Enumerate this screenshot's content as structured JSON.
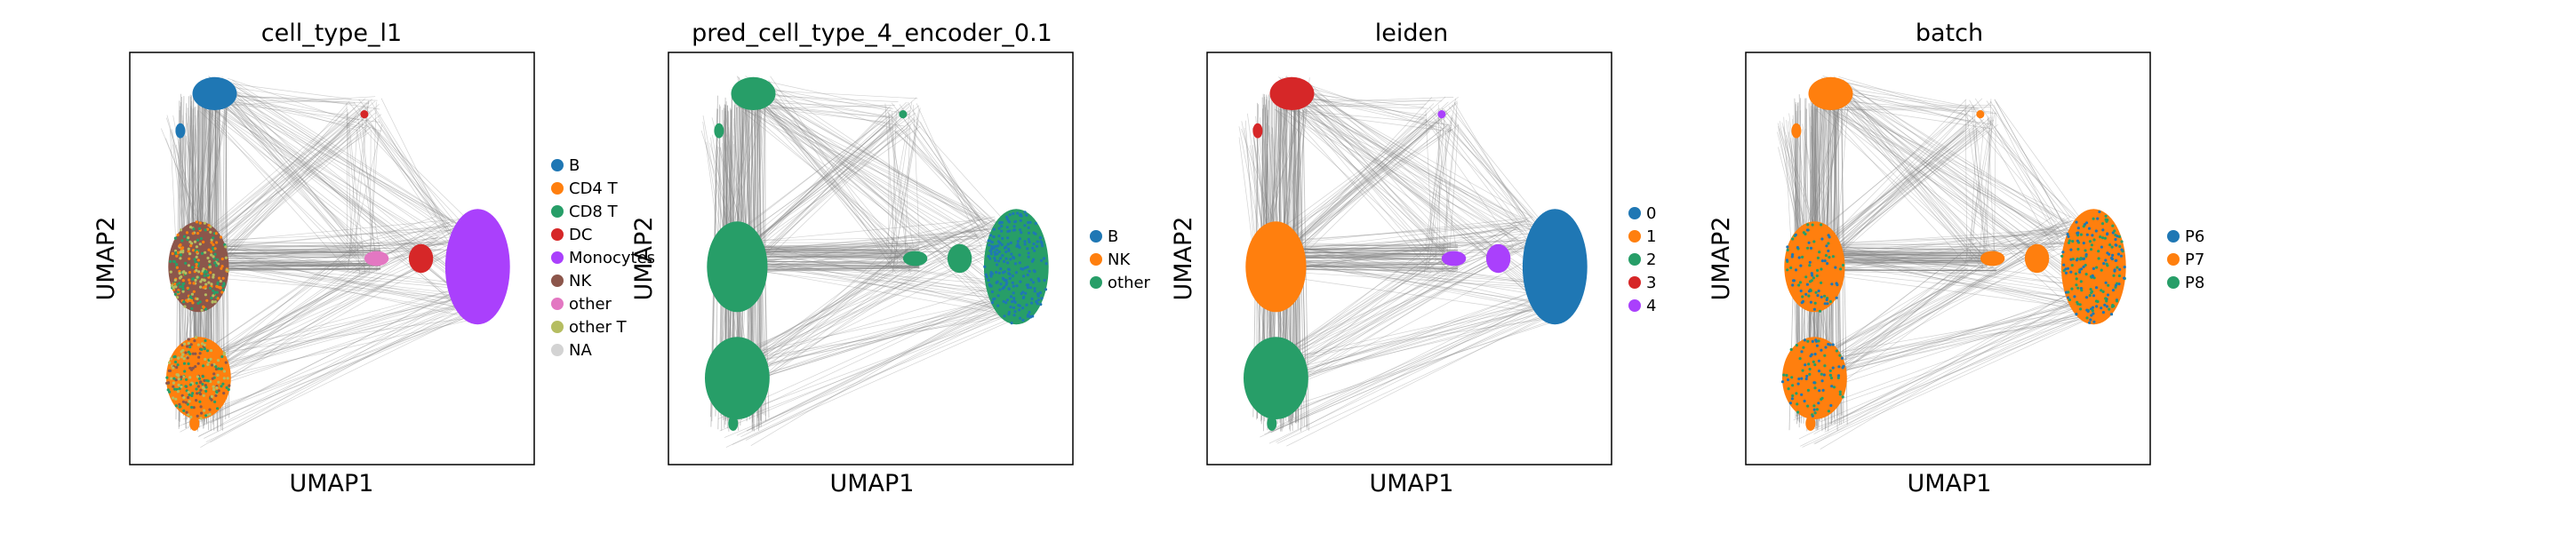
{
  "figure": {
    "xlabel": "UMAP1",
    "ylabel": "UMAP2"
  },
  "chart_data": [
    {
      "type": "scatter",
      "title": "cell_type_l1",
      "xlabel": "UMAP1",
      "ylabel": "UMAP2",
      "grid": false,
      "legend_placement": "right",
      "legend": [
        {
          "label": "B",
          "color": "#1f77b4"
        },
        {
          "label": "CD4 T",
          "color": "#ff7f0e"
        },
        {
          "label": "CD8 T",
          "color": "#279e68"
        },
        {
          "label": "DC",
          "color": "#d62728"
        },
        {
          "label": "Monocytes",
          "color": "#aa40fc"
        },
        {
          "label": "NK",
          "color": "#8c564b"
        },
        {
          "label": "other",
          "color": "#e377c2"
        },
        {
          "label": "other T",
          "color": "#b5bd61"
        },
        {
          "label": "NA",
          "color": "#d3d3d3"
        }
      ],
      "clusters": [
        {
          "label": "B",
          "color": "#1f77b4",
          "x": 0.22,
          "y": 0.85
        },
        {
          "label": "CD4 T",
          "color": "#ff7f0e",
          "x": 0.16,
          "y": 0.23
        },
        {
          "label": "CD8 T",
          "color": "#279e68",
          "x": 0.17,
          "y": 0.4
        },
        {
          "label": "DC",
          "color": "#d62728",
          "x": 0.72,
          "y": 0.48
        },
        {
          "label": "Monocytes",
          "color": "#aa40fc",
          "x": 0.85,
          "y": 0.49
        },
        {
          "label": "NK",
          "color": "#8c564b",
          "x": 0.17,
          "y": 0.47
        },
        {
          "label": "other",
          "color": "#e377c2",
          "x": 0.61,
          "y": 0.49
        },
        {
          "label": "other T",
          "color": "#b5bd61",
          "x": 0.14,
          "y": 0.33
        }
      ]
    },
    {
      "type": "scatter",
      "title": "pred_cell_type_4_encoder_0.1",
      "xlabel": "UMAP1",
      "ylabel": "UMAP2",
      "grid": false,
      "legend_placement": "right",
      "legend": [
        {
          "label": "B",
          "color": "#1f77b4"
        },
        {
          "label": "NK",
          "color": "#ff7f0e"
        },
        {
          "label": "other",
          "color": "#279e68"
        }
      ]
    },
    {
      "type": "scatter",
      "title": "leiden",
      "xlabel": "UMAP1",
      "ylabel": "UMAP2",
      "grid": false,
      "legend_placement": "right",
      "legend": [
        {
          "label": "0",
          "color": "#1f77b4"
        },
        {
          "label": "1",
          "color": "#ff7f0e"
        },
        {
          "label": "2",
          "color": "#279e68"
        },
        {
          "label": "3",
          "color": "#d62728"
        },
        {
          "label": "4",
          "color": "#aa40fc"
        }
      ]
    },
    {
      "type": "scatter",
      "title": "batch",
      "xlabel": "UMAP1",
      "ylabel": "UMAP2",
      "grid": false,
      "legend_placement": "right",
      "legend": [
        {
          "label": "P6",
          "color": "#1f77b4"
        },
        {
          "label": "P7",
          "color": "#ff7f0e"
        },
        {
          "label": "P8",
          "color": "#279e68"
        }
      ]
    }
  ]
}
